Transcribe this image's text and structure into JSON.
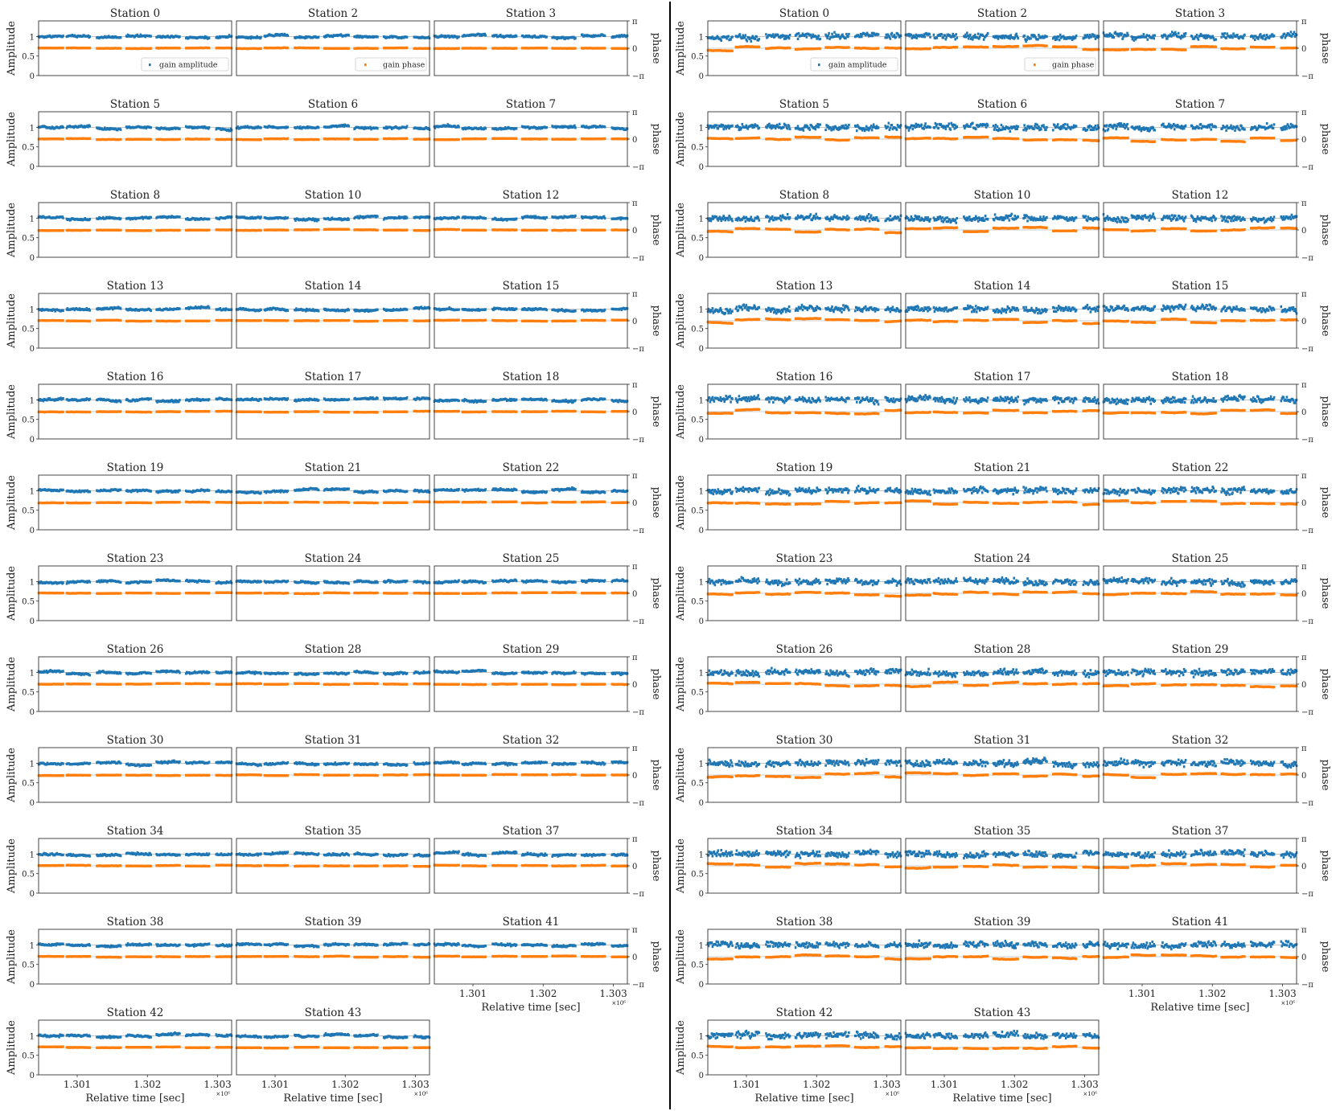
{
  "panels": [
    {
      "stations": [
        "0",
        "2",
        "3",
        "5",
        "6",
        "7",
        "8",
        "10",
        "12",
        "13",
        "14",
        "15",
        "16",
        "17",
        "18",
        "19",
        "21",
        "22",
        "23",
        "24",
        "25",
        "26",
        "28",
        "29",
        "30",
        "31",
        "32",
        "34",
        "35",
        "37",
        "38",
        "39",
        "41",
        "42",
        "43"
      ],
      "noise": 0.035,
      "phase_wobble": 0.02
    },
    {
      "stations": [
        "0",
        "2",
        "3",
        "5",
        "6",
        "7",
        "8",
        "10",
        "12",
        "13",
        "14",
        "15",
        "16",
        "17",
        "18",
        "19",
        "21",
        "22",
        "23",
        "24",
        "25",
        "26",
        "28",
        "29",
        "30",
        "31",
        "32",
        "34",
        "35",
        "37",
        "38",
        "39",
        "41",
        "42",
        "43"
      ],
      "noise": 0.11,
      "phase_wobble": 0.08
    }
  ],
  "labels": {
    "station_prefix": "Station",
    "amplitude": "Amplitude",
    "phase": "phase",
    "time": "Relative time [sec]",
    "x_exponent": "×10⁶",
    "legend_amp": "gain amplitude",
    "legend_phase": "gain phase"
  },
  "colors": {
    "amplitude": "#1f77b4",
    "phase": "#ff7f0e",
    "divider": "#000000",
    "frame": "#333333"
  },
  "chart_data": {
    "type": "scatter",
    "grid": "3 columns of station subplots per panel, two panels side by side",
    "x": {
      "label": "Relative time [sec]",
      "ticks": [
        "1.301",
        "1.302",
        "1.303"
      ],
      "exponent": "×10⁶",
      "range": [
        1300450,
        1303200
      ]
    },
    "y_left": {
      "label": "Amplitude",
      "ticks": [
        "0",
        "0.5",
        "1"
      ],
      "range": [
        0,
        1.4
      ]
    },
    "y_right": {
      "label": "phase",
      "ticks": [
        "−π",
        "0",
        "π"
      ],
      "range": [
        -3.14159,
        3.14159
      ]
    },
    "series": [
      {
        "name": "gain amplitude",
        "color": "#1f77b4",
        "typical_value": 1.0
      },
      {
        "name": "gain phase",
        "color": "#ff7f0e",
        "typical_value": 0.0
      }
    ],
    "time_segments": [
      [
        1300450,
        1300800
      ],
      [
        1300850,
        1301180
      ],
      [
        1301280,
        1301620
      ],
      [
        1301700,
        1302050
      ],
      [
        1302130,
        1302460
      ],
      [
        1302550,
        1302880
      ],
      [
        1302980,
        1303200
      ]
    ]
  }
}
